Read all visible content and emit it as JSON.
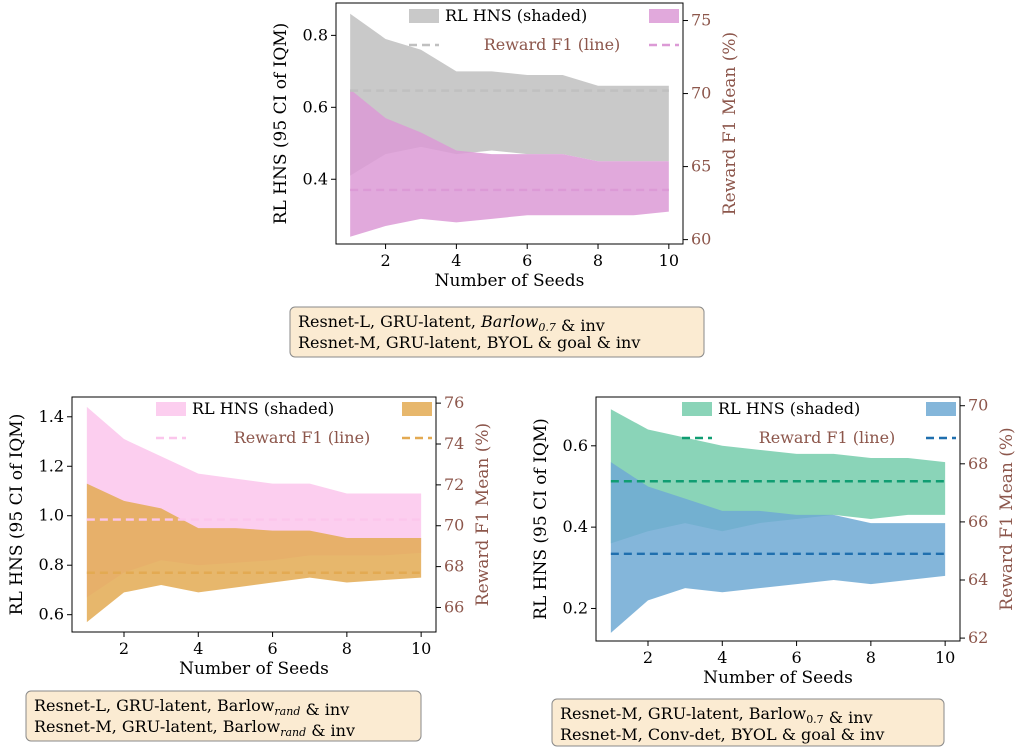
{
  "chart_data": [
    {
      "type": "area",
      "x": [
        1,
        2,
        3,
        4,
        5,
        6,
        7,
        8,
        9,
        10
      ],
      "xlabel": "Number of Seeds",
      "ylabel": "RL HNS (95 CI of IQM)",
      "ylabel_right": "Reward F1 Mean (%)",
      "xlim": [
        0.6,
        10.4
      ],
      "ylim": [
        0.22,
        0.89
      ],
      "ylim_right": [
        59.7,
        76.2
      ],
      "xticks": [
        2,
        4,
        6,
        8,
        10
      ],
      "yticks": [
        0.4,
        0.6,
        0.8
      ],
      "yticks_right": [
        60,
        65,
        70,
        75
      ],
      "legend": {
        "placement": "top-right",
        "shaded": "RL HNS (shaded)",
        "line": "Reward F1 (line)"
      },
      "series": [
        {
          "name": "Resnet-L, GRU-latent, Barlow0.7 & inv",
          "color": "#c0c0c0",
          "lower": [
            0.41,
            0.47,
            0.49,
            0.47,
            0.48,
            0.47,
            0.47,
            0.45,
            0.45,
            0.45
          ],
          "upper": [
            0.86,
            0.79,
            0.76,
            0.7,
            0.7,
            0.69,
            0.69,
            0.66,
            0.66,
            0.66
          ],
          "f1_mean": 70.2
        },
        {
          "name": "Resnet-M, GRU-latent, BYOL & goal & inv",
          "color": "#dc9ad6",
          "lower": [
            0.24,
            0.27,
            0.29,
            0.28,
            0.29,
            0.3,
            0.3,
            0.3,
            0.3,
            0.31
          ],
          "upper": [
            0.65,
            0.57,
            0.53,
            0.48,
            0.47,
            0.47,
            0.47,
            0.45,
            0.45,
            0.45
          ],
          "f1_mean": 63.4
        }
      ],
      "caption": [
        [
          "Resnet-L, GRU-latent, ",
          {
            "t": "Barlow",
            "it": true
          },
          {
            "t": "0.7",
            "sub": true,
            "it": true
          },
          " & inv"
        ],
        [
          "Resnet-M, GRU-latent, BYOL & goal & inv"
        ]
      ]
    },
    {
      "type": "area",
      "x": [
        1,
        2,
        3,
        4,
        5,
        6,
        7,
        8,
        9,
        10
      ],
      "xlabel": "Number of Seeds",
      "ylabel": "RL HNS (95 CI of IQM)",
      "ylabel_right": "Reward F1 Mean (%)",
      "xlim": [
        0.6,
        10.4
      ],
      "ylim": [
        0.53,
        1.48
      ],
      "ylim_right": [
        64.8,
        76.3
      ],
      "xticks": [
        2,
        4,
        6,
        8,
        10
      ],
      "yticks": [
        0.6,
        0.8,
        1.0,
        1.2,
        1.4
      ],
      "yticks_right": [
        66,
        68,
        70,
        72,
        74,
        76
      ],
      "legend": {
        "placement": "top-right",
        "shaded": "RL HNS (shaded)",
        "line": "Reward F1 (line)"
      },
      "series": [
        {
          "name": "Resnet-L, GRU-latent, Barlow_rand & inv",
          "color": "#fbc6ec",
          "lower": [
            0.67,
            0.77,
            0.82,
            0.8,
            0.81,
            0.82,
            0.84,
            0.84,
            0.84,
            0.85
          ],
          "upper": [
            1.44,
            1.31,
            1.24,
            1.17,
            1.15,
            1.13,
            1.13,
            1.09,
            1.09,
            1.09
          ],
          "f1_mean": 70.3
        },
        {
          "name": "Resnet-M, GRU-latent, Barlow_rand & inv",
          "color": "#e3aa52",
          "lower": [
            0.57,
            0.69,
            0.72,
            0.69,
            0.71,
            0.73,
            0.75,
            0.73,
            0.74,
            0.75
          ],
          "upper": [
            1.13,
            1.06,
            1.03,
            0.95,
            0.95,
            0.94,
            0.94,
            0.91,
            0.91,
            0.91
          ],
          "f1_mean": 67.7
        }
      ],
      "caption": [
        [
          "Resnet-L, GRU-latent, Barlow",
          {
            "t": "rand",
            "sub": true,
            "it": true
          },
          " & inv"
        ],
        [
          "Resnet-M, GRU-latent, Barlow",
          {
            "t": "rand",
            "sub": true,
            "it": true
          },
          " & inv"
        ]
      ]
    },
    {
      "type": "area",
      "x": [
        1,
        2,
        3,
        4,
        5,
        6,
        7,
        8,
        9,
        10
      ],
      "xlabel": "Number of Seeds",
      "ylabel": "RL HNS (95 CI of IQM)",
      "ylabel_right": "Reward F1 Mean (%)",
      "xlim": [
        0.6,
        10.4
      ],
      "ylim": [
        0.12,
        0.72
      ],
      "ylim_right": [
        61.9,
        70.3
      ],
      "xticks": [
        2,
        4,
        6,
        8,
        10
      ],
      "yticks": [
        0.2,
        0.4,
        0.6
      ],
      "yticks_right": [
        62,
        64,
        66,
        68,
        70
      ],
      "legend": {
        "placement": "top-right",
        "shaded": "RL HNS (shaded)",
        "line": "Reward F1 (line)"
      },
      "series": [
        {
          "name": "Resnet-M, GRU-latent, Barlow0.7 & inv",
          "color": "#75cdac",
          "lower": [
            0.36,
            0.39,
            0.41,
            0.39,
            0.41,
            0.42,
            0.43,
            0.42,
            0.43,
            0.43
          ],
          "upper": [
            0.69,
            0.64,
            0.62,
            0.6,
            0.59,
            0.58,
            0.58,
            0.57,
            0.57,
            0.56
          ],
          "f1_mean": 67.4
        },
        {
          "name": "Resnet-M, Conv-det, BYOL & goal & inv",
          "color": "#6fa9d3",
          "lower": [
            0.14,
            0.22,
            0.25,
            0.24,
            0.25,
            0.26,
            0.27,
            0.26,
            0.27,
            0.28
          ],
          "upper": [
            0.56,
            0.5,
            0.47,
            0.44,
            0.44,
            0.43,
            0.43,
            0.41,
            0.41,
            0.41
          ],
          "f1_mean": 64.9
        }
      ],
      "line_colors": [
        "#109d72",
        "#1f6fae"
      ],
      "caption": [
        [
          "Resnet-M, GRU-latent, Barlow",
          {
            "t": "0.7",
            "sub": true
          },
          " & inv"
        ],
        [
          "Resnet-M, Conv-det, BYOL & goal & inv"
        ]
      ]
    }
  ]
}
